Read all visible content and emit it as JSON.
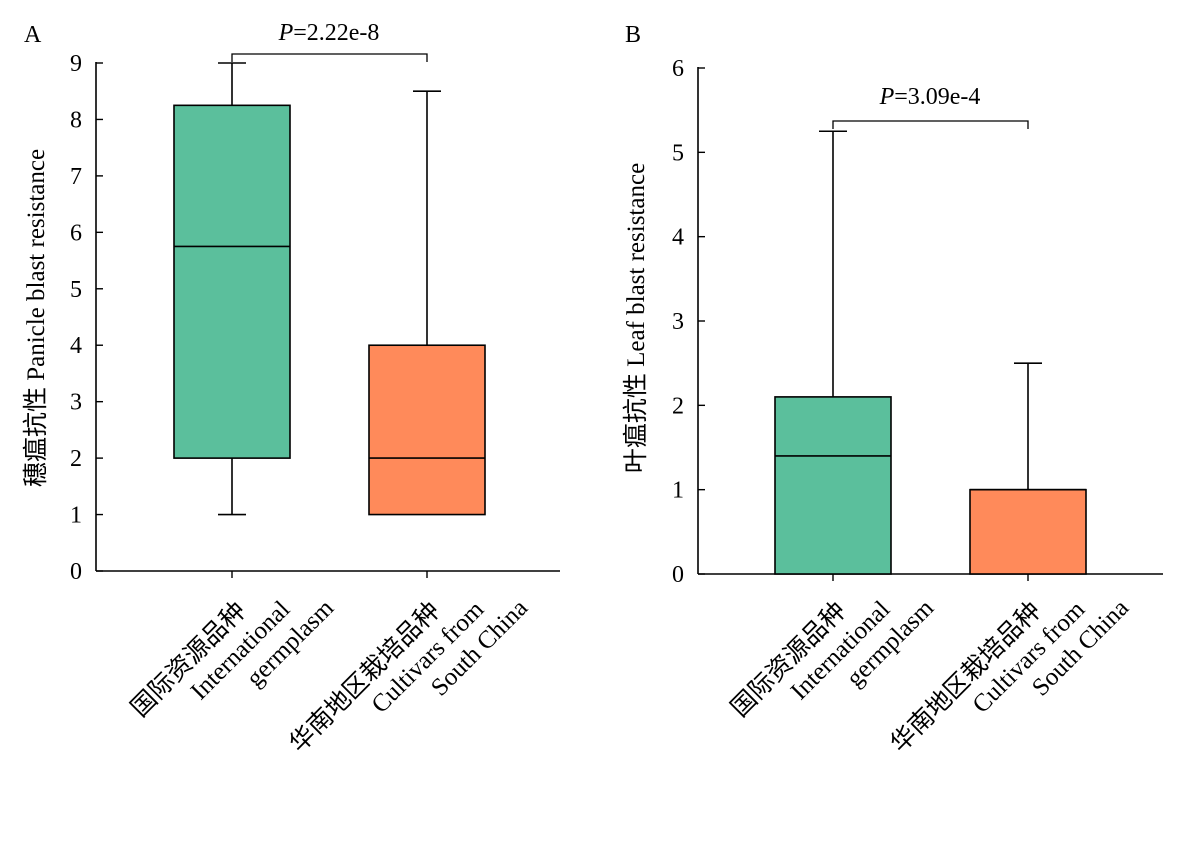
{
  "chart_data": [
    {
      "type": "box",
      "panel_label": "A",
      "ylabel": "穗瘟抗性 Panicle blast resistance",
      "ylim": [
        0,
        9
      ],
      "yticks": [
        0,
        1,
        2,
        3,
        4,
        5,
        6,
        7,
        8,
        9
      ],
      "categories": [
        [
          "国际资源品种",
          "International",
          "germplasm"
        ],
        [
          "华南地区栽培品种",
          "Cultivars from",
          "South China"
        ]
      ],
      "boxes": [
        {
          "min": 1,
          "q1": 2,
          "median": 5.75,
          "q3": 8.25,
          "max": 9,
          "color": "#5BBF9C"
        },
        {
          "min": 1,
          "q1": 1,
          "median": 2,
          "q3": 4,
          "max": 8.5,
          "color": "#FF8A5A"
        }
      ],
      "pvalue": {
        "prefix": "P",
        "text": "=2.22e-8"
      }
    },
    {
      "type": "box",
      "panel_label": "B",
      "ylabel": "叶瘟抗性 Leaf blast resistance",
      "ylim": [
        0,
        6
      ],
      "yticks": [
        0,
        1,
        2,
        3,
        4,
        5,
        6
      ],
      "categories": [
        [
          "国际资源品种",
          "International",
          "germplasm"
        ],
        [
          "华南地区栽培品种",
          "Cultivars from",
          "South China"
        ]
      ],
      "boxes": [
        {
          "min": 0,
          "q1": 0,
          "median": 1.4,
          "q3": 2.1,
          "max": 5.25,
          "color": "#5BBF9C"
        },
        {
          "min": 0,
          "q1": 0,
          "median": 1,
          "q3": 1,
          "max": 2.5,
          "color": "#FF8A5A"
        }
      ],
      "pvalue": {
        "prefix": "P",
        "text": "=3.09e-4"
      }
    }
  ]
}
